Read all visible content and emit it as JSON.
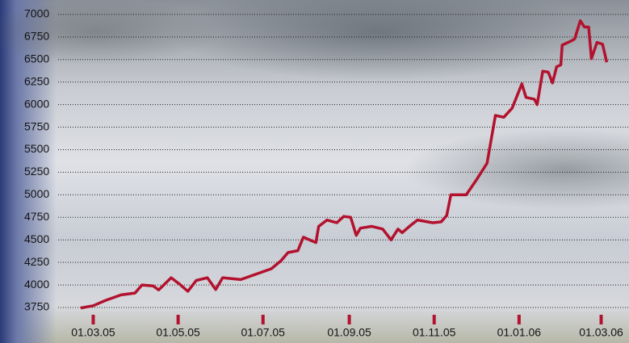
{
  "chart_data": {
    "type": "line",
    "x": [
      "20.02.05",
      "01.03.05",
      "10.03.05",
      "21.03.05",
      "31.03.05",
      "05.04.05",
      "13.04.05",
      "17.04.05",
      "26.04.05",
      "02.05.05",
      "08.05.05",
      "14.05.05",
      "22.05.05",
      "28.05.05",
      "02.06.05",
      "15.06.05",
      "07.07.05",
      "14.07.05",
      "19.07.05",
      "26.07.05",
      "30.07.05",
      "08.08.05",
      "10.08.05",
      "16.08.05",
      "23.08.05",
      "28.08.05",
      "02.09.05",
      "06.09.05",
      "09.09.05",
      "17.09.05",
      "25.09.05",
      "01.10.05",
      "06.10.05",
      "09.10.05",
      "15.10.05",
      "20.10.05",
      "31.10.05",
      "06.11.05",
      "10.11.05",
      "13.11.05",
      "24.11.05",
      "02.12.05",
      "09.12.05",
      "15.12.05",
      "21.12.05",
      "27.12.05",
      "03.01.06",
      "06.01.06",
      "12.01.06",
      "14.01.06",
      "18.01.06",
      "22.01.06",
      "25.01.06",
      "28.01.06",
      "31.01.06",
      "01.02.06",
      "08.02.06",
      "10.02.06",
      "14.02.06",
      "17.02.06",
      "20.02.06",
      "22.02.06",
      "26.02.06",
      "02.03.06",
      "05.03.06"
    ],
    "series": [
      {
        "color": "#b3122e",
        "values": [
          3745,
          3770,
          3830,
          3890,
          3910,
          4000,
          3990,
          3945,
          4080,
          4010,
          3930,
          4050,
          4080,
          3950,
          4080,
          4060,
          4180,
          4270,
          4360,
          4380,
          4530,
          4470,
          4650,
          4720,
          4690,
          4760,
          4750,
          4550,
          4630,
          4650,
          4620,
          4500,
          4620,
          4580,
          4660,
          4720,
          4690,
          4700,
          4770,
          5000,
          5000,
          5180,
          5350,
          5880,
          5860,
          5960,
          6230,
          6080,
          6060,
          6000,
          6370,
          6360,
          6240,
          6420,
          6440,
          6660,
          6710,
          6730,
          6930,
          6860,
          6860,
          6510,
          6690,
          6670,
          6470
        ]
      }
    ],
    "xlim": [
      "24.12.04",
      "21.03.06"
    ],
    "xticks": [
      "01.03.05",
      "01.05.05",
      "01.07.05",
      "01.09.05",
      "01.11.05",
      "01.01.06",
      "01.03.06"
    ],
    "ylim": [
      3625,
      7160
    ],
    "yticks": [
      3750,
      4000,
      4250,
      4500,
      4750,
      5000,
      5250,
      5500,
      5750,
      6000,
      6250,
      6500,
      6750,
      7000
    ],
    "grid": true
  }
}
